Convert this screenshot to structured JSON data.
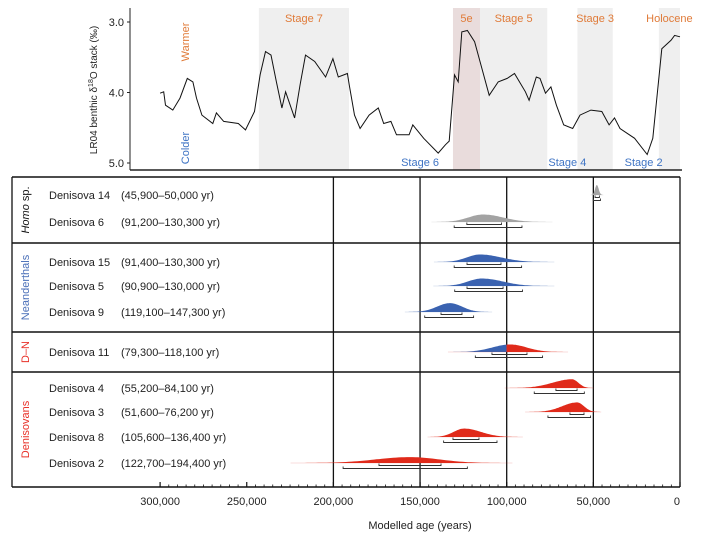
{
  "chart_data": [
    {
      "type": "line",
      "title": "",
      "ylabel": "LR04 benthic δ18O stack (‰)",
      "ylabel_parts": {
        "pre": "LR04 benthic δ",
        "sup": "18",
        "post": "O stack (‰)"
      },
      "ylim": [
        5.0,
        3.0
      ],
      "yticks": [
        "3.0",
        "4.0",
        "5.0"
      ],
      "ytick_values": [
        3.0,
        4.0,
        5.0
      ],
      "xlim_years": [
        300000,
        0
      ],
      "warmer_label": "Warmer",
      "colder_label": "Colder",
      "series": [
        {
          "name": "LR04",
          "age_kyr": [
            300,
            297.9,
            296.9,
            292.7,
            288.5,
            284.3,
            281.1,
            279.0,
            275.9,
            269.6,
            267.5,
            263.3,
            254.9,
            250.7,
            245.5,
            242.3,
            239.2,
            236.0,
            232.9,
            229.7,
            227.6,
            222.4,
            219.2,
            216.1,
            210.8,
            204.5,
            200.3,
            197.2,
            191.9,
            190.9,
            187.8,
            184.6,
            179.4,
            174.1,
            171.0,
            166.8,
            163.6,
            156.3,
            154.2,
            147.9,
            139.5,
            135.3,
            133.2,
            130.1,
            128.0,
            125.9,
            122.7,
            118.5,
            115.4,
            110.1,
            104.9,
            99.7,
            95.5,
            89.2,
            87.1,
            82.9,
            80.8,
            77.6,
            74.5,
            71.3,
            67.1,
            61.9,
            57.7,
            51.4,
            45.1,
            40.9,
            37.8,
            34.6,
            26.2,
            18.9,
            15.7,
            10.5,
            5.2,
            3.1,
            0
          ],
          "d18O": [
            4.01,
            3.99,
            4.18,
            4.25,
            4.08,
            3.8,
            3.85,
            4.08,
            4.32,
            4.44,
            4.29,
            4.41,
            4.44,
            4.53,
            4.27,
            3.75,
            3.42,
            3.47,
            3.85,
            4.22,
            3.99,
            4.36,
            3.89,
            3.47,
            3.56,
            3.78,
            3.52,
            3.78,
            3.73,
            3.89,
            4.32,
            4.51,
            4.32,
            4.22,
            4.44,
            4.41,
            4.6,
            4.6,
            4.46,
            4.65,
            4.86,
            4.74,
            4.69,
            3.75,
            3.85,
            3.14,
            3.12,
            3.28,
            3.56,
            4.04,
            3.85,
            3.8,
            3.73,
            3.99,
            4.11,
            3.78,
            3.8,
            4.01,
            3.92,
            4.18,
            4.46,
            4.51,
            4.32,
            4.25,
            4.27,
            4.46,
            4.36,
            4.51,
            4.65,
            4.88,
            4.65,
            3.38,
            3.26,
            3.19,
            3.21
          ]
        }
      ],
      "bands": [
        {
          "label": "Stage 7",
          "from_kyr": 243,
          "to_kyr": 191,
          "label_pos": "top",
          "shade": "#efefef"
        },
        {
          "label": "5e",
          "from_kyr": 131,
          "to_kyr": 115.4,
          "label_pos": "top",
          "shade": "#e9dcdc"
        },
        {
          "label": "Stage 5",
          "from_kyr": 115.4,
          "to_kyr": 76.6,
          "label_pos": "top",
          "shade": "#efefef"
        },
        {
          "label": "Stage 3",
          "from_kyr": 59.2,
          "to_kyr": 38.8,
          "label_pos": "top",
          "shade": "#efefef"
        },
        {
          "label": "Holocene",
          "from_kyr": 12.2,
          "to_kyr": 0,
          "label_pos": "top",
          "shade": "#efefef"
        }
      ],
      "cold_stage_labels": [
        {
          "label": "Stage 6",
          "at_kyr": 150
        },
        {
          "label": "Stage 4",
          "at_kyr": 65
        },
        {
          "label": "Stage 2",
          "at_kyr": 21
        }
      ],
      "colors": {
        "warm": "#e07b39",
        "cold": "#3f74c4",
        "line": "#111111"
      }
    },
    {
      "type": "density",
      "xlabel": "Modelled age (years)",
      "xlim": [
        300000,
        0
      ],
      "xticks": [
        300000,
        250000,
        200000,
        150000,
        100000,
        50000,
        0
      ],
      "xtick_labels": [
        "300,000",
        "250,000",
        "200,000",
        "150,000",
        "100,000",
        "50,000",
        "0"
      ],
      "gridlines": [
        200000,
        150000,
        100000,
        50000
      ],
      "groups": [
        {
          "label": "Homo sp.",
          "italic_part": "Homo",
          "rest": " sp.",
          "color": "#111111",
          "rows": [
            {
              "name": "Denisova 14",
              "range": "(45,900–50,000 yr)",
              "mode": 48000,
              "r68": [
                46500,
                49000
              ],
              "r95": [
                45900,
                50000
              ],
              "fill": "#a3a3a3"
            },
            {
              "name": "Denisova 6",
              "range": "(91,200–130,300 yr)",
              "mode": 113600,
              "r68": [
                103000,
                123000
              ],
              "r95": [
                91200,
                130300
              ],
              "fill": "#a3a3a3"
            }
          ]
        },
        {
          "label": "Neanderthals",
          "color": "#4a6fb8",
          "rows": [
            {
              "name": "Denisova 15",
              "range": "(91,400–130,300 yr)",
              "mode": 115400,
              "r68": [
                103300,
                122900
              ],
              "r95": [
                91400,
                130300
              ],
              "fill": "#3a62b0"
            },
            {
              "name": "Denisova 5",
              "range": "(90,900–130,000 yr)",
              "mode": 114300,
              "r68": [
                102100,
                122900
              ],
              "r95": [
                90900,
                130000
              ],
              "fill": "#3a62b0"
            },
            {
              "name": "Denisova 9",
              "range": "(119,100–147,300 yr)",
              "mode": 132700,
              "r68": [
                125800,
                137900
              ],
              "r95": [
                119100,
                147300
              ],
              "fill": "#3a62b0"
            }
          ]
        },
        {
          "label": "D–N",
          "color": "#e8322a",
          "rows": [
            {
              "name": "Denisova 11",
              "range": "(79,300–118,100 yr)",
              "mode": 98000,
              "r68": [
                88300,
                108500
              ],
              "r95": [
                79300,
                118100
              ],
              "fill": "#3a62b0",
              "fill_young": "#e02a1a",
              "split": 100000
            }
          ]
        },
        {
          "label": "Denisovans",
          "color": "#e8322a",
          "rows": [
            {
              "name": "Denisova 4",
              "range": "(55,200–84,100 yr)",
              "mode": 62300,
              "r68": [
                59400,
                71600
              ],
              "r95": [
                55200,
                84100
              ],
              "fill": "#e02a1a"
            },
            {
              "name": "Denisova 3",
              "range": "(51,600–76,200 yr)",
              "mode": 59400,
              "r68": [
                55400,
                63500
              ],
              "r95": [
                51600,
                76200
              ],
              "fill": "#e02a1a"
            },
            {
              "name": "Denisova 8",
              "range": "(105,600–136,400 yr)",
              "mode": 124600,
              "r68": [
                116000,
                131000
              ],
              "r95": [
                105600,
                136400
              ],
              "fill": "#e02a1a"
            },
            {
              "name": "Denisova 2",
              "range": "(122,700–194,400 yr)",
              "mode": 155800,
              "r68": [
                137900,
                173700
              ],
              "r95": [
                122700,
                194400
              ],
              "fill": "#e02a1a"
            }
          ]
        }
      ]
    }
  ]
}
